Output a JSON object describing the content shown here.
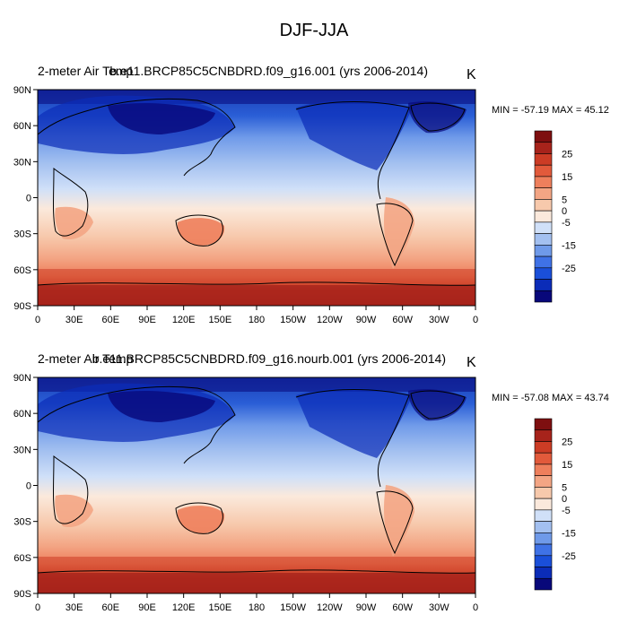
{
  "figure": {
    "main_title": "DJF-JJA",
    "unit": "K"
  },
  "palette": [
    "#08087a",
    "#0b2cb8",
    "#1a4fd9",
    "#3f72e6",
    "#6f9ae9",
    "#a3c0f0",
    "#d0e0f8",
    "#fbe9dc",
    "#f7c9ac",
    "#f3a584",
    "#ee7f5c",
    "#e25a3b",
    "#cc3c25",
    "#a7231b",
    "#7e0f10"
  ],
  "colorbar": {
    "tick_labels": [
      "25",
      "15",
      "5",
      "0",
      "-5",
      "-15",
      "-25"
    ]
  },
  "axes": {
    "lat_labels": [
      "90N",
      "60N",
      "30N",
      "0",
      "30S",
      "60S",
      "90S"
    ],
    "lon_labels": [
      "0",
      "30E",
      "60E",
      "90E",
      "120E",
      "150E",
      "180",
      "150W",
      "120W",
      "90W",
      "60W",
      "30W",
      "0"
    ]
  },
  "panels": [
    {
      "title": "2-meter Air Temp",
      "case": "b.e11.BRCP85C5CNBDRD.f09_g16.001 (yrs 2006-2014)",
      "unit": "K",
      "stats": "MIN = -57.19 MAX =  45.12"
    },
    {
      "title": "2-meter Air Temp",
      "case": "b.e11.BRCP85C5CNBDRD.f09_g16.nourb.001 (yrs 2006-2014)",
      "unit": "K",
      "stats": "MIN = -57.08 MAX =  43.74"
    }
  ]
}
